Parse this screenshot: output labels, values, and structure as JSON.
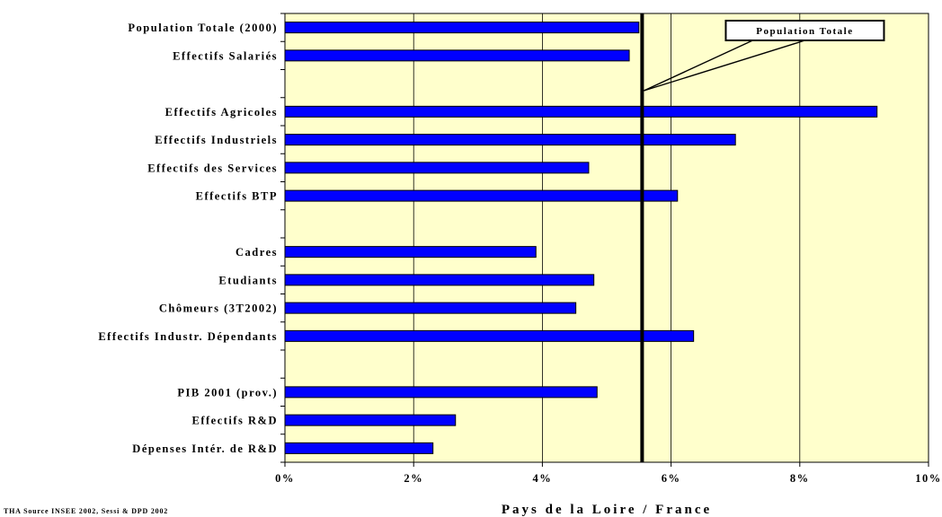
{
  "chart_data": {
    "type": "bar",
    "orientation": "horizontal",
    "categories": [
      "Population Totale (2000)",
      "Effectifs Salariés",
      "",
      "Effectifs Agricoles",
      "Effectifs Industriels",
      "Effectifs des Services",
      "Effectifs BTP",
      "",
      "Cadres",
      "Etudiants",
      "Chômeurs (3T2002)",
      "Effectifs Industr. Dépendants",
      "",
      "PIB 2001 (prov.)",
      "Effectifs R&D",
      "Dépenses Intér. de R&D"
    ],
    "values": [
      5.5,
      5.35,
      null,
      9.2,
      7.0,
      4.72,
      6.1,
      null,
      3.9,
      4.8,
      4.52,
      6.35,
      null,
      4.85,
      2.65,
      2.3
    ],
    "xlim": [
      0,
      10
    ],
    "xticks": [
      "0%",
      "2%",
      "4%",
      "6%",
      "8%",
      "10%"
    ],
    "xlabel": "Pays de la Loire / France",
    "ylabel": "",
    "grid": "vertical",
    "reference_line": {
      "value": 5.55,
      "label": "Population Totale"
    },
    "colors": {
      "bar": "#0000ff",
      "plot_bg": "#ffffcc",
      "bar_edge": "#000000",
      "grid": "#000000"
    }
  },
  "source_note": "THA   Source INSEE 2002, Sessi & DPD 2002"
}
